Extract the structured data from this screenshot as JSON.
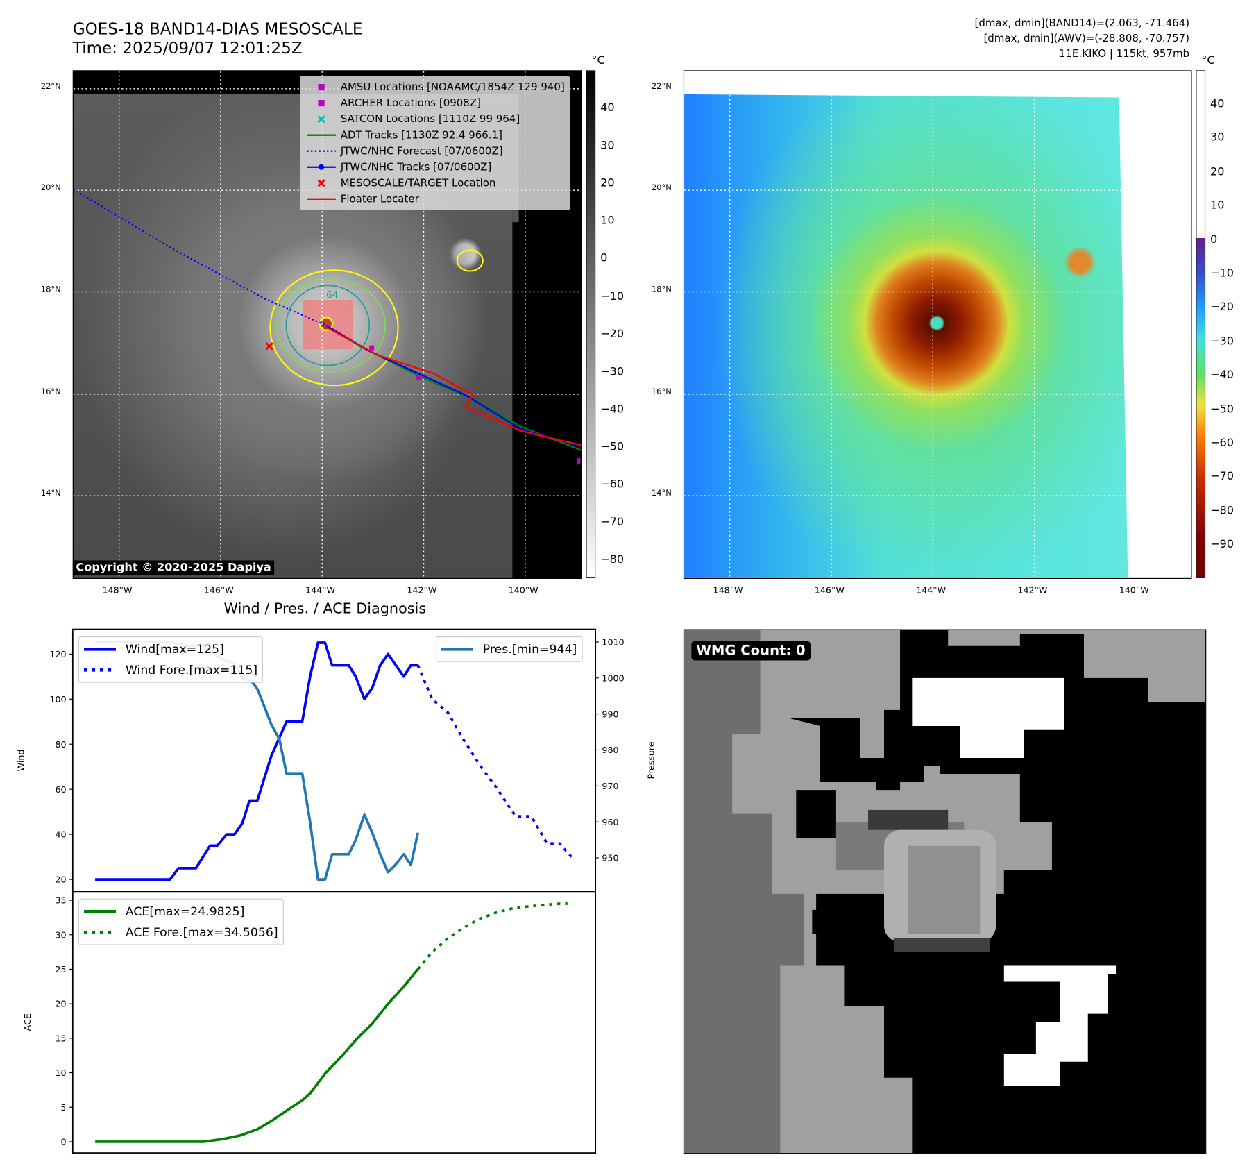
{
  "header": {
    "title_line1": "GOES-18 BAND14-DIAS MESOSCALE",
    "title_line2": "Time: 2025/09/07 12:01:25Z",
    "info_line1": "[dmax, dmin](BAND14)=(2.063, -71.464)",
    "info_line2": "[dmax, dmin](AWV)=(-28.808, -70.757)",
    "info_line3": "11E.KIKO | 115kt, 957mb"
  },
  "map": {
    "lon_labels": [
      "148°W",
      "146°W",
      "144°W",
      "142°W",
      "140°W"
    ],
    "lat_labels": [
      "22°N",
      "20°N",
      "18°N",
      "16°N",
      "14°N"
    ],
    "copyright": "Copyright © 2020-2025 Dapiya",
    "contour_label": "64",
    "legend": [
      {
        "label": "AMSU Locations [NOAAMC/1854Z 129 940]",
        "icon": "square-marker",
        "color": "#c000c0"
      },
      {
        "label": "ARCHER Locations [0908Z]",
        "icon": "square-marker",
        "color": "#c000c0"
      },
      {
        "label": "SATCON Locations [1110Z 99 964]",
        "icon": "x-marker",
        "color": "#00c0c0"
      },
      {
        "label": "ADT Tracks [1130Z 92.4 966.1]",
        "icon": "solid-line",
        "color": "#008000"
      },
      {
        "label": "JTWC/NHC Forecast [07/0600Z]",
        "icon": "dotted-line",
        "color": "#0000ff"
      },
      {
        "label": "JTWC/NHC Tracks [07/0600Z]",
        "icon": "line-dot",
        "color": "#0000ff"
      },
      {
        "label": "MESOSCALE/TARGET Location",
        "icon": "x-marker",
        "color": "#ff0000"
      },
      {
        "label": "Floater Locater",
        "icon": "solid-line",
        "color": "#ff0000"
      }
    ]
  },
  "colorbar1": {
    "unit": "°C",
    "ticks": [
      "40",
      "30",
      "20",
      "10",
      "0",
      "−10",
      "−20",
      "−30",
      "−40",
      "−50",
      "−60",
      "−70",
      "−80"
    ]
  },
  "colorbar2": {
    "unit": "°C",
    "ticks": [
      "40",
      "30",
      "20",
      "10",
      "0",
      "−10",
      "−20",
      "−30",
      "−40",
      "−50",
      "−60",
      "−70",
      "−80",
      "−90"
    ]
  },
  "wmg": {
    "label": "WMG Count: 0"
  },
  "colors": {
    "wind": "#0000ff",
    "pres": "#1f77b4",
    "ace": "#008000"
  },
  "chart_data": [
    {
      "type": "line",
      "title": "Wind / Pres. / ACE Diagnosis",
      "ylabel": "Wind",
      "y2label": "Pressure",
      "ylim": [
        17,
        130
      ],
      "y2lim": [
        941,
        1012
      ],
      "yticks": [
        "20",
        "40",
        "60",
        "80",
        "100",
        "120"
      ],
      "y2ticks": [
        "950",
        "960",
        "970",
        "980",
        "990",
        "1000",
        "1010"
      ],
      "series": [
        {
          "name": "Wind[max=125]",
          "style": "solid",
          "axis": "left",
          "x": [
            0,
            9.5,
            10.6,
            12.8,
            14.6,
            15.5,
            16.7,
            17.7,
            18.7,
            19.6,
            20.6,
            22.4,
            24.3,
            26.3,
            27.3,
            28.3,
            29.2,
            30.1,
            32.2,
            33.1,
            34.2,
            35.2,
            36.2,
            37.2,
            39.2,
            40.1,
            41
          ],
          "y": [
            20,
            20,
            25,
            25,
            35,
            35,
            40,
            40,
            45,
            55,
            55,
            75,
            90,
            90,
            110,
            125,
            125,
            115,
            115,
            110,
            100,
            105,
            115,
            120,
            110,
            115,
            115
          ]
        },
        {
          "name": "Wind Fore.[max=115]",
          "style": "dotted",
          "axis": "left",
          "x": [
            41,
            42.8,
            44.8,
            46.8,
            48.8,
            50.9,
            53.4,
            55.4,
            57.4,
            59,
            60.5
          ],
          "y": [
            115,
            100,
            94,
            82,
            71,
            61,
            48,
            48,
            36,
            36,
            30
          ]
        },
        {
          "name": "Pres.[min=944]",
          "style": "solid",
          "axis": "right",
          "x": [
            0,
            9.5,
            11.7,
            13.8,
            14.8,
            16.3,
            17.7,
            18.7,
            19.9,
            20.6,
            22.4,
            23.4,
            24.3,
            26.3,
            27.3,
            28.3,
            29.2,
            30.1,
            32.2,
            33.1,
            34.2,
            35.2,
            36.2,
            37.2,
            38.1,
            39.2,
            40.1,
            41
          ],
          "y": [
            1010,
            1010,
            1009,
            1009,
            1007,
            1005,
            1004,
            1000,
            999,
            997,
            987,
            983,
            973.5,
            973.5,
            960,
            944,
            944,
            951,
            951,
            955,
            962,
            957,
            951,
            946,
            948,
            951,
            948,
            957
          ]
        }
      ]
    },
    {
      "type": "line",
      "ylabel": "ACE",
      "ylim": [
        -1.5,
        36.5
      ],
      "yticks": [
        "0",
        "5",
        "10",
        "15",
        "20",
        "25",
        "30",
        "35"
      ],
      "series": [
        {
          "name": "ACE[max=24.9825]",
          "style": "solid",
          "x": [
            0,
            13.8,
            16.3,
            18.4,
            20.6,
            22.4,
            24.3,
            26.3,
            27.3,
            29.3,
            31.4,
            33.3,
            35.1,
            37.2,
            39.2,
            41
          ],
          "y": [
            0,
            0,
            0.4,
            0.9,
            1.8,
            3,
            4.5,
            6,
            7,
            10,
            12.5,
            15,
            17,
            20,
            22.5,
            25
          ]
        },
        {
          "name": "ACE Fore.[max=34.5056]",
          "style": "dotted",
          "x": [
            41,
            42.8,
            44.8,
            46.8,
            48.8,
            50.9,
            52.9,
            54.9,
            56.9,
            59,
            60
          ],
          "y": [
            25,
            27.5,
            29.5,
            31,
            32.3,
            33.2,
            33.8,
            34.1,
            34.3,
            34.5,
            34.5
          ]
        }
      ]
    }
  ]
}
